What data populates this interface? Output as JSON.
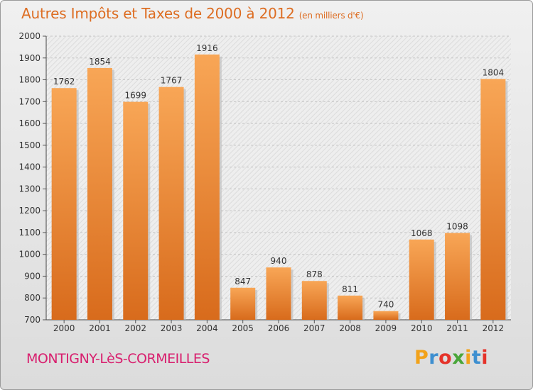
{
  "title": "Autres Impôts et Taxes de 2000 à 2012",
  "subtitle": "(en milliers d'€)",
  "commune": "MONTIGNY-LèS-CORMEILLES",
  "logo": {
    "letters": [
      "P",
      "r",
      "o",
      "x",
      "i",
      "t",
      "i"
    ],
    "colors": [
      "#f2a21a",
      "#3e8fd0",
      "#e5332a",
      "#4aa63a",
      "#f2a21a",
      "#3e8fd0",
      "#e5332a"
    ]
  },
  "colors": {
    "bar_light": "#f8a656",
    "bar_dark": "#d86b1c",
    "title": "#dd6d22",
    "commune": "#d81f6e"
  },
  "chart_data": {
    "type": "bar",
    "title": "Autres Impôts et Taxes de 2000 à 2012",
    "subtitle": "(en milliers d'€)",
    "categories": [
      "2000",
      "2001",
      "2002",
      "2003",
      "2004",
      "2005",
      "2006",
      "2007",
      "2008",
      "2009",
      "2010",
      "2011",
      "2012"
    ],
    "values": [
      1762,
      1854,
      1699,
      1767,
      1916,
      847,
      940,
      878,
      811,
      740,
      1068,
      1098,
      1804
    ],
    "yticks": [
      700,
      800,
      900,
      1000,
      1100,
      1200,
      1300,
      1400,
      1500,
      1600,
      1700,
      1800,
      1900,
      2000
    ],
    "ylim": [
      700,
      2000
    ],
    "xlabel": "",
    "ylabel": "",
    "grid": true
  }
}
